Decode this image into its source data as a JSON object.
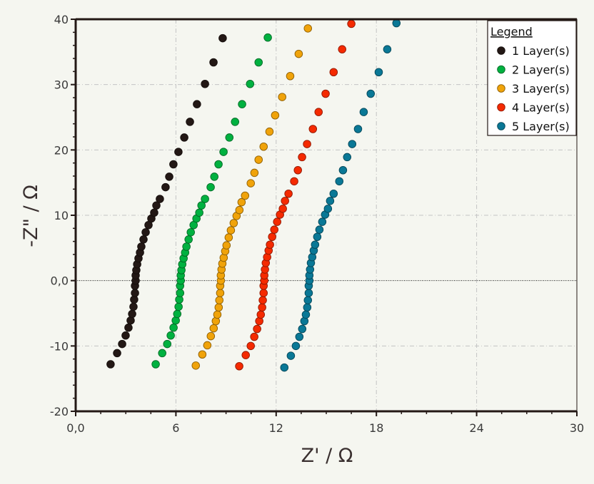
{
  "chart_data": {
    "type": "scatter",
    "title": "",
    "xlabel": "Z' / Ω",
    "ylabel": "-Z\" / Ω",
    "xlim": [
      0,
      30
    ],
    "ylim": [
      -20,
      40
    ],
    "xticks": [
      "0,0",
      "6",
      "12",
      "18",
      "24",
      "30"
    ],
    "xtick_values": [
      0,
      6,
      12,
      18,
      24,
      30
    ],
    "yticks": [
      "-20",
      "-10",
      "0,0",
      "10",
      "20",
      "30",
      "40"
    ],
    "ytick_values": [
      -20,
      -10,
      0,
      10,
      20,
      30,
      40
    ],
    "grid": true,
    "zero_line": true,
    "legend": {
      "title": "Legend",
      "placement": "top-right"
    },
    "series": [
      {
        "name": "1 Layer(s)",
        "color": "#231815",
        "x": [
          2.09,
          2.48,
          2.78,
          2.99,
          3.16,
          3.29,
          3.38,
          3.46,
          3.5,
          3.55,
          3.55,
          3.59,
          3.59,
          3.63,
          3.68,
          3.76,
          3.85,
          3.93,
          4.06,
          4.19,
          4.36,
          4.53,
          4.7,
          4.83,
          5.04,
          5.38,
          5.6,
          5.85,
          6.15,
          6.5,
          6.84,
          7.26,
          7.74,
          8.25,
          8.8
        ],
        "y": [
          -12.8,
          -11.1,
          -9.7,
          -8.4,
          -7.2,
          -6.1,
          -5.1,
          -4.0,
          -2.9,
          -1.9,
          -0.8,
          0,
          0.8,
          1.6,
          2.5,
          3.4,
          4.3,
          5.2,
          6.3,
          7.4,
          8.5,
          9.5,
          10.4,
          11.5,
          12.5,
          14.3,
          15.9,
          17.8,
          19.7,
          21.9,
          24.3,
          27.0,
          30.1,
          33.4,
          37.1
        ]
      },
      {
        "name": "2 Layer(s)",
        "color": "#00b140",
        "x": [
          4.79,
          5.18,
          5.48,
          5.69,
          5.86,
          5.99,
          6.08,
          6.16,
          6.2,
          6.25,
          6.25,
          6.29,
          6.29,
          6.33,
          6.38,
          6.46,
          6.55,
          6.63,
          6.76,
          6.89,
          7.06,
          7.23,
          7.4,
          7.53,
          7.74,
          8.08,
          8.3,
          8.55,
          8.85,
          9.2,
          9.54,
          9.96,
          10.44,
          10.95,
          11.5
        ],
        "y": [
          -12.8,
          -11.1,
          -9.7,
          -8.4,
          -7.2,
          -6.1,
          -5.1,
          -4.0,
          -2.9,
          -1.9,
          -0.8,
          0,
          0.8,
          1.6,
          2.5,
          3.4,
          4.3,
          5.2,
          6.3,
          7.4,
          8.5,
          9.5,
          10.4,
          11.5,
          12.5,
          14.3,
          15.9,
          17.8,
          19.7,
          21.9,
          24.3,
          27.0,
          30.1,
          33.4,
          37.2
        ]
      },
      {
        "name": "3 Layer(s)",
        "color": "#f0a30a",
        "x": [
          7.19,
          7.58,
          7.88,
          8.09,
          8.26,
          8.39,
          8.48,
          8.56,
          8.6,
          8.65,
          8.65,
          8.69,
          8.69,
          8.73,
          8.78,
          8.86,
          8.95,
          9.03,
          9.16,
          9.29,
          9.46,
          9.63,
          9.8,
          9.93,
          10.14,
          10.48,
          10.7,
          10.95,
          11.25,
          11.6,
          11.94,
          12.36,
          12.84,
          13.35,
          13.9
        ],
        "y": [
          -13.0,
          -11.3,
          -9.9,
          -8.5,
          -7.3,
          -6.2,
          -5.2,
          -4.1,
          -3.0,
          -1.9,
          -0.8,
          0,
          0.8,
          1.7,
          2.6,
          3.5,
          4.5,
          5.4,
          6.6,
          7.7,
          8.8,
          9.9,
          10.8,
          12.0,
          13.0,
          14.9,
          16.5,
          18.5,
          20.5,
          22.8,
          25.3,
          28.1,
          31.3,
          34.7,
          38.6
        ]
      },
      {
        "name": "4 Layer(s)",
        "color": "#f52a00",
        "x": [
          9.79,
          10.18,
          10.48,
          10.69,
          10.86,
          10.99,
          11.08,
          11.16,
          11.2,
          11.25,
          11.25,
          11.29,
          11.29,
          11.33,
          11.38,
          11.46,
          11.55,
          11.63,
          11.76,
          11.89,
          12.06,
          12.23,
          12.4,
          12.53,
          12.74,
          13.08,
          13.3,
          13.55,
          13.85,
          14.2,
          14.54,
          14.96,
          15.44,
          15.95,
          16.5
        ],
        "y": [
          -13.1,
          -11.4,
          -10.0,
          -8.6,
          -7.4,
          -6.2,
          -5.2,
          -4.1,
          -3.0,
          -1.9,
          -0.8,
          0,
          0.8,
          1.7,
          2.7,
          3.6,
          4.6,
          5.5,
          6.7,
          7.8,
          9.0,
          10.1,
          11.0,
          12.2,
          13.3,
          15.2,
          16.9,
          18.9,
          20.9,
          23.2,
          25.8,
          28.6,
          31.9,
          35.4,
          39.3
        ]
      },
      {
        "name": "5 Layer(s)",
        "color": "#0a7896",
        "x": [
          12.49,
          12.88,
          13.18,
          13.39,
          13.56,
          13.69,
          13.78,
          13.86,
          13.9,
          13.95,
          13.95,
          13.99,
          13.99,
          14.03,
          14.08,
          14.16,
          14.25,
          14.33,
          14.46,
          14.59,
          14.76,
          14.93,
          15.1,
          15.23,
          15.44,
          15.78,
          16.0,
          16.25,
          16.55,
          16.9,
          17.24,
          17.66,
          18.14,
          18.65,
          19.2
        ],
        "y": [
          -13.3,
          -11.5,
          -10.0,
          -8.6,
          -7.4,
          -6.2,
          -5.2,
          -4.1,
          -3.0,
          -1.9,
          -0.8,
          0,
          0.8,
          1.7,
          2.7,
          3.6,
          4.6,
          5.5,
          6.7,
          7.8,
          9.0,
          10.1,
          11.0,
          12.2,
          13.3,
          15.2,
          16.9,
          18.9,
          20.9,
          23.2,
          25.8,
          28.6,
          31.9,
          35.4,
          39.4
        ]
      }
    ]
  }
}
